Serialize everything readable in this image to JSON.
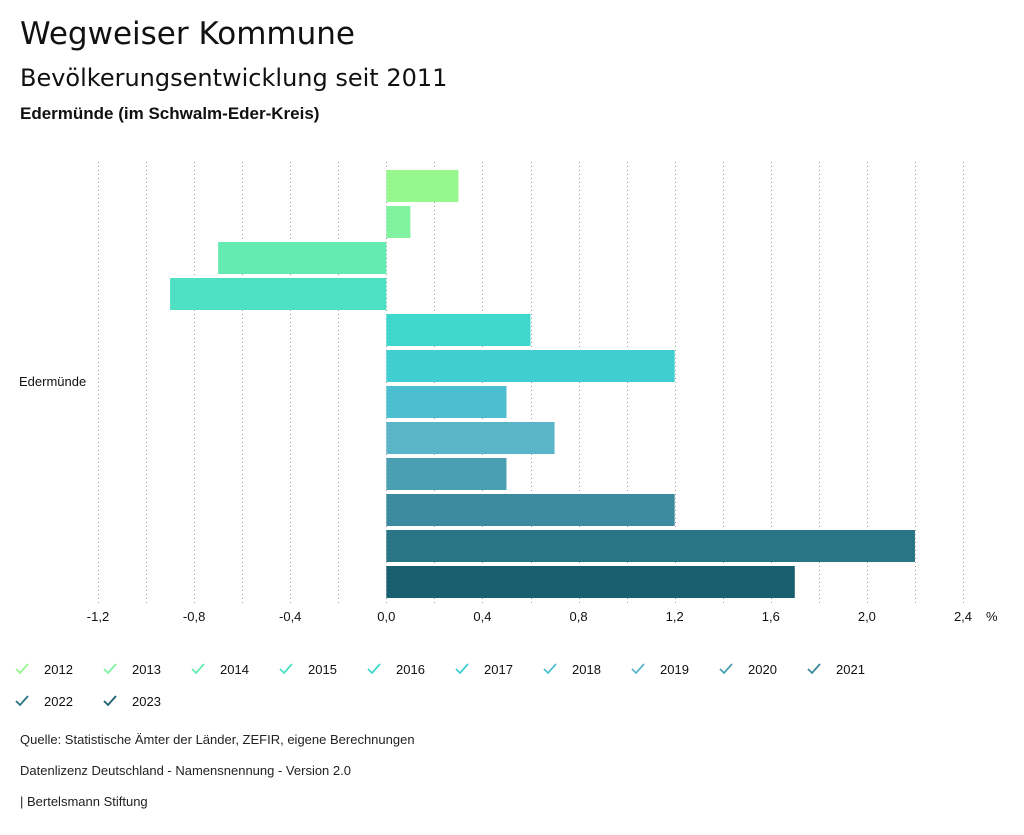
{
  "header": {
    "title": "Wegweiser Kommune",
    "subtitle": "Bevölkerungsentwicklung seit 2011",
    "region": "Edermünde (im Schwalm-Eder-Kreis)"
  },
  "chart_data": {
    "type": "bar",
    "orientation": "horizontal",
    "categories": [
      "Edermünde"
    ],
    "series": [
      {
        "name": "2012",
        "values": [
          0.3
        ],
        "color": "#96f78e"
      },
      {
        "name": "2013",
        "values": [
          0.1
        ],
        "color": "#80f2a0"
      },
      {
        "name": "2014",
        "values": [
          -0.7
        ],
        "color": "#63ebb2"
      },
      {
        "name": "2015",
        "values": [
          -0.9
        ],
        "color": "#4de0c3"
      },
      {
        "name": "2016",
        "values": [
          0.6
        ],
        "color": "#40d8cc"
      },
      {
        "name": "2017",
        "values": [
          1.2
        ],
        "color": "#41ced1"
      },
      {
        "name": "2018",
        "values": [
          0.5
        ],
        "color": "#4bbfd0"
      },
      {
        "name": "2019",
        "values": [
          0.7
        ],
        "color": "#5ab5c8"
      },
      {
        "name": "2020",
        "values": [
          0.5
        ],
        "color": "#4a9fb2"
      },
      {
        "name": "2021",
        "values": [
          1.2
        ],
        "color": "#3b8a9d"
      },
      {
        "name": "2022",
        "values": [
          2.2
        ],
        "color": "#297485"
      },
      {
        "name": "2023",
        "values": [
          1.7
        ],
        "color": "#1a5f70"
      }
    ],
    "xlim": [
      -1.2,
      2.4
    ],
    "ticks": [
      "-1,2",
      "-0,8",
      "-0,4",
      "0,0",
      "0,4",
      "0,8",
      "1,2",
      "1,6",
      "2,0",
      "2,4"
    ],
    "tick_values": [
      -1.2,
      -0.8,
      -0.4,
      0.0,
      0.4,
      0.8,
      1.2,
      1.6,
      2.0,
      2.4
    ],
    "unit": "%",
    "grid": true
  },
  "footer": {
    "source": "Quelle: Statistische Ämter der Länder, ZEFIR, eigene Berechnungen",
    "license": "Datenlizenz Deutschland - Namensnennung - Version 2.0",
    "brand": "| Bertelsmann Stiftung"
  }
}
